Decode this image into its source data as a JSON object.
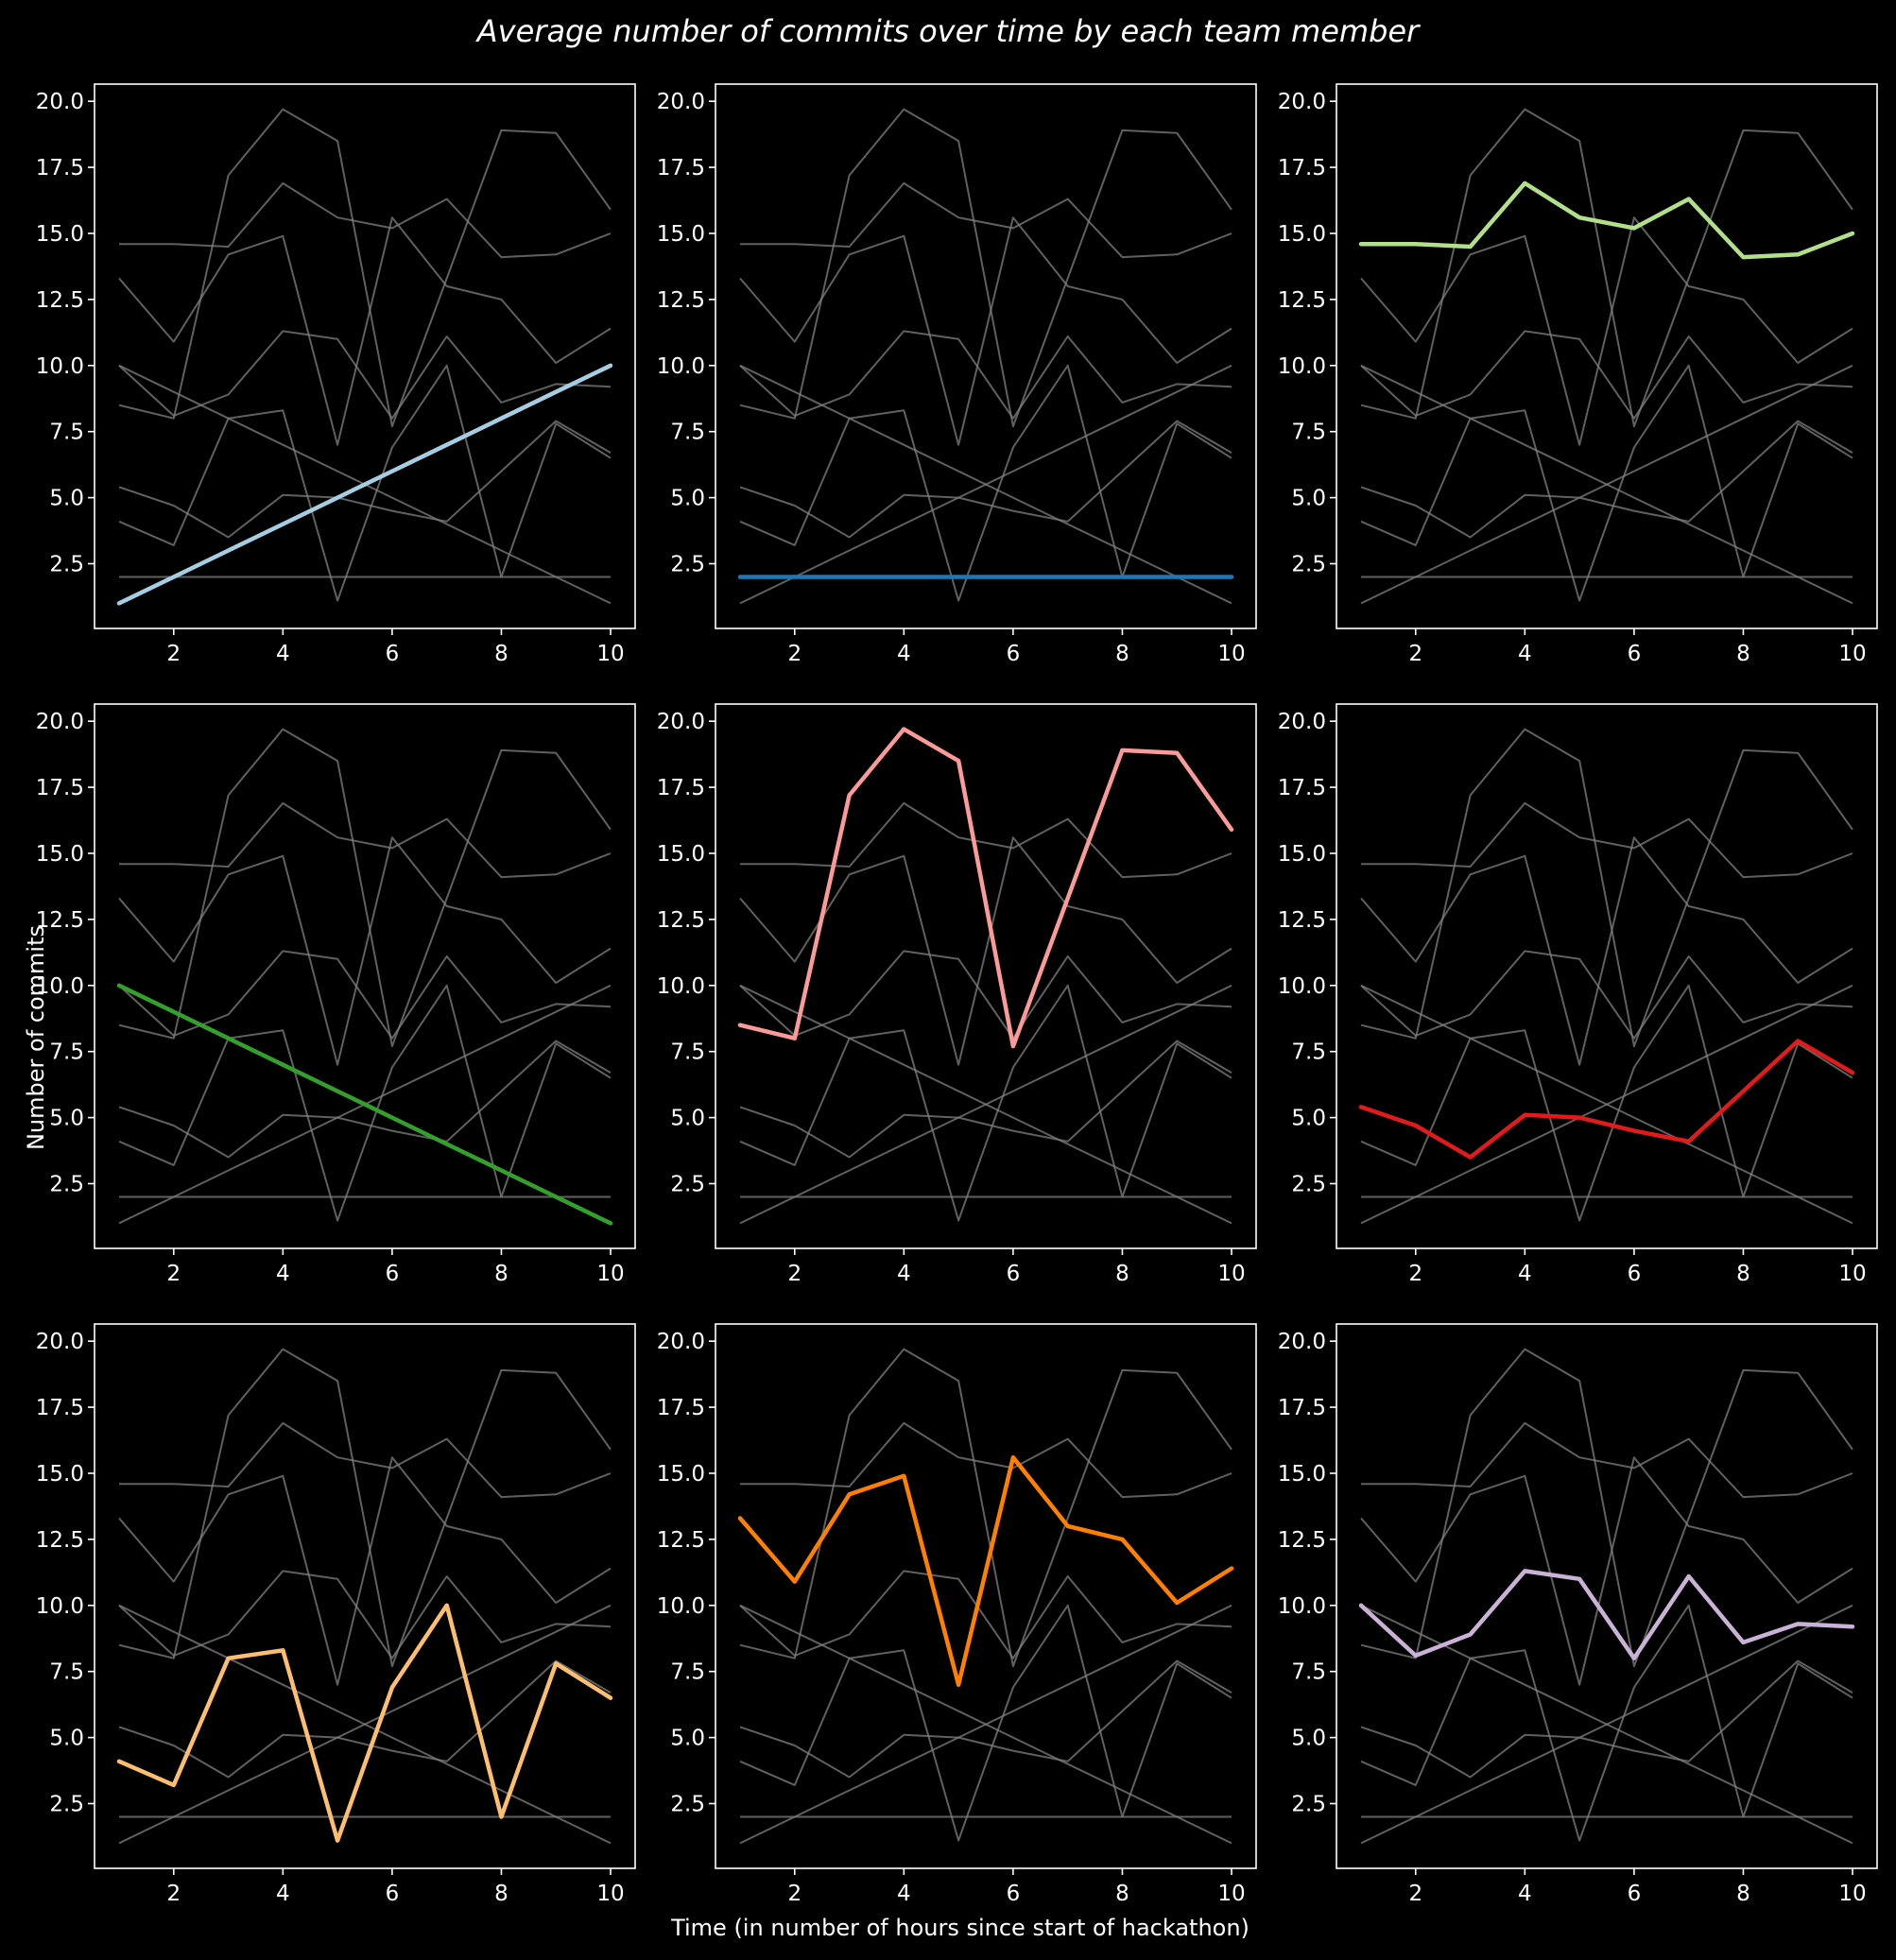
{
  "chart_data": {
    "type": "line",
    "title": "Average number of commits over time by each team member",
    "xlabel": "Time (in number of hours since start of hackathon)",
    "ylabel": "Number of commits",
    "x": [
      1,
      2,
      3,
      4,
      5,
      6,
      7,
      8,
      9,
      10
    ],
    "xlim": [
      0.55,
      10.45
    ],
    "ylim": [
      0.05,
      20.65
    ],
    "xticks": [
      2,
      4,
      6,
      8,
      10
    ],
    "yticks": [
      2.5,
      5.0,
      7.5,
      10.0,
      12.5,
      15.0,
      17.5,
      20.0
    ],
    "xtick_labels": [
      "2",
      "4",
      "6",
      "8",
      "10"
    ],
    "ytick_labels": [
      "2.5",
      "5.0",
      "7.5",
      "10.0",
      "12.5",
      "15.0",
      "17.5",
      "20.0"
    ],
    "layout": "3x3 small multiples; each panel highlights one series over all series in grey",
    "background": "#000000",
    "context_line_color": "#808080",
    "grid": false,
    "series": [
      {
        "values": [
          1,
          2,
          3,
          4,
          5,
          6,
          7,
          8,
          9,
          10
        ],
        "color": "#a6cee3"
      },
      {
        "values": [
          2,
          2,
          2,
          2,
          2,
          2,
          2,
          2,
          2,
          2
        ],
        "color": "#1f78b4"
      },
      {
        "values": [
          14.6,
          14.6,
          14.5,
          16.9,
          15.6,
          15.2,
          16.3,
          14.1,
          14.2,
          15.0
        ],
        "color": "#b2df8a"
      },
      {
        "values": [
          10,
          9,
          8,
          7,
          6,
          5,
          4,
          3,
          2,
          1
        ],
        "color": "#33a02c"
      },
      {
        "values": [
          8.5,
          8.0,
          17.2,
          19.7,
          18.5,
          7.7,
          13.3,
          18.9,
          18.8,
          15.9
        ],
        "color": "#fb9a99"
      },
      {
        "values": [
          5.4,
          4.7,
          3.5,
          5.1,
          5.0,
          4.5,
          4.1,
          6.0,
          7.9,
          6.7
        ],
        "color": "#e31a1c"
      },
      {
        "values": [
          4.1,
          3.2,
          8.0,
          8.3,
          1.1,
          6.9,
          10.0,
          2.0,
          7.8,
          6.5
        ],
        "color": "#fdbf6f"
      },
      {
        "values": [
          13.3,
          10.9,
          14.2,
          14.9,
          7.0,
          15.6,
          13.0,
          12.5,
          10.1,
          11.4
        ],
        "color": "#ff7f00"
      },
      {
        "values": [
          10.0,
          8.1,
          8.9,
          11.3,
          11.0,
          8.0,
          11.1,
          8.6,
          9.3,
          9.2
        ],
        "color": "#cab2d6"
      }
    ]
  }
}
